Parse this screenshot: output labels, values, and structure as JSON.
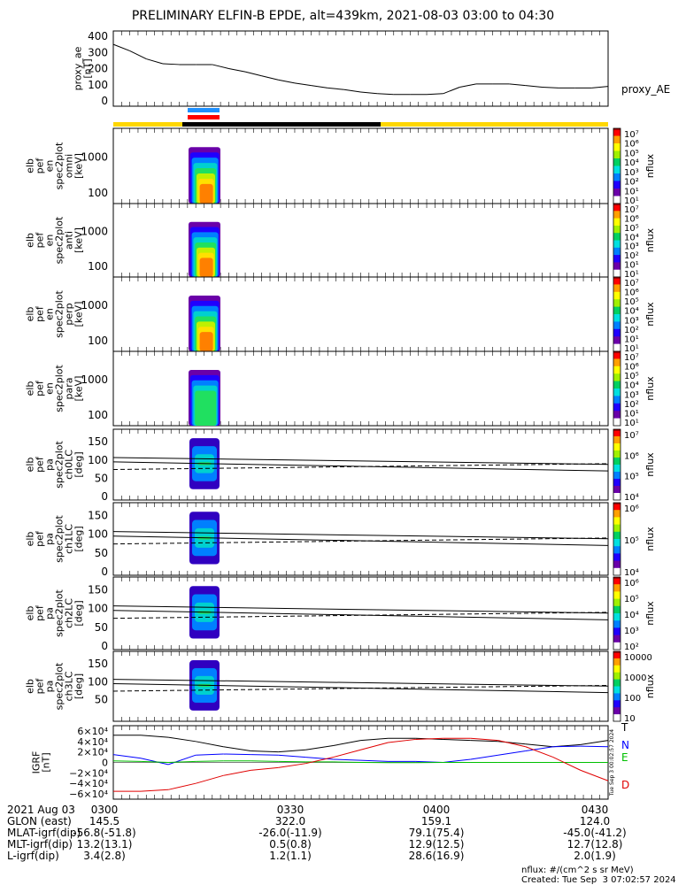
{
  "title": "PRELIMINARY ELFIN-B EPDE, alt=439km, 2021-08-03 03:00 to 04:30",
  "ae_panel": {
    "ylabel_lines": [
      "proxy_ae",
      "[nT]"
    ],
    "series_label": "proxy_AE",
    "ticks": [
      "400",
      "300",
      "200",
      "100",
      "0"
    ]
  },
  "spec_panels": [
    {
      "ylabel_lines": [
        "elb",
        "pef",
        "en",
        "spec2plot",
        "omni",
        "[keV]"
      ],
      "ticks": [
        "1000",
        "100"
      ],
      "cbar_label": "nflux",
      "cbar_ticks": [
        "10⁷",
        "10⁶",
        "10⁵",
        "10⁴",
        "10³",
        "10²",
        "10¹",
        "10¹"
      ]
    },
    {
      "ylabel_lines": [
        "elb",
        "pef",
        "en",
        "spec2plot",
        "anti",
        "[keV]"
      ],
      "ticks": [
        "1000",
        "100"
      ],
      "cbar_label": "nflux",
      "cbar_ticks": [
        "10⁷",
        "10⁶",
        "10⁵",
        "10⁴",
        "10³",
        "10²",
        "10¹",
        "10¹"
      ]
    },
    {
      "ylabel_lines": [
        "elb",
        "pef",
        "en",
        "spec2plot",
        "perp",
        "[keV]"
      ],
      "ticks": [
        "1000",
        "100"
      ],
      "cbar_label": "nflux",
      "cbar_ticks": [
        "10⁷",
        "10⁶",
        "10⁵",
        "10⁴",
        "10³",
        "10²",
        "10¹",
        "10¹"
      ]
    },
    {
      "ylabel_lines": [
        "elb",
        "pef",
        "en",
        "spec2plot",
        "para",
        "[keV]"
      ],
      "ticks": [
        "1000",
        "100"
      ],
      "cbar_label": "nflux",
      "cbar_ticks": [
        "10⁷",
        "10⁶",
        "10⁵",
        "10⁴",
        "10³",
        "10²",
        "10¹",
        "10¹"
      ]
    }
  ],
  "pa_panels": [
    {
      "ylabel_lines": [
        "elb",
        "pef",
        "pa",
        "spec2plot",
        "ch0LC",
        "[deg]"
      ],
      "ticks": [
        "150",
        "100",
        "50",
        "0"
      ],
      "cbar_label": "nflux",
      "cbar_ticks": [
        "10⁷",
        "10⁶",
        "10⁵",
        "10⁴"
      ]
    },
    {
      "ylabel_lines": [
        "elb",
        "pef",
        "pa",
        "spec2plot",
        "ch1LC",
        "[deg]"
      ],
      "ticks": [
        "150",
        "100",
        "50",
        "0"
      ],
      "cbar_label": "nflux",
      "cbar_ticks": [
        "10⁶",
        "10⁵",
        "10⁴"
      ]
    },
    {
      "ylabel_lines": [
        "elb",
        "pef",
        "pa",
        "spec2plot",
        "ch2LC",
        "[deg]"
      ],
      "ticks": [
        "150",
        "100",
        "50",
        "0"
      ],
      "cbar_label": "nflux",
      "cbar_ticks": [
        "10⁶",
        "10⁵",
        "10⁴",
        "10³",
        "10²"
      ]
    },
    {
      "ylabel_lines": [
        "elb",
        "pef",
        "pa",
        "spec2plot",
        "ch3LC",
        "[deg]"
      ],
      "ticks": [
        "150",
        "100",
        "50"
      ],
      "cbar_label": "nflux",
      "cbar_ticks": [
        "10000",
        "1000",
        "100",
        "10"
      ]
    }
  ],
  "igrf_panel": {
    "ylabel_lines": [
      "IGRF",
      "[nT]"
    ],
    "ticks": [
      "6×10⁴",
      "4×10⁴",
      "2×10⁴",
      "0",
      "−2×10⁴",
      "−4×10⁴",
      "−6×10⁴"
    ],
    "legend": [
      {
        "label": "T",
        "color": "#000000"
      },
      {
        "label": "N",
        "color": "#0000ff"
      },
      {
        "label": "E",
        "color": "#00c000"
      },
      {
        "label": "D",
        "color": "#e00000"
      }
    ],
    "side_text": "Tue Sep  3 00:02:57 2024"
  },
  "footer_rows": [
    [
      "2021 Aug 03",
      "0300",
      "0330",
      "0400",
      "0430"
    ],
    [
      "GLON (east)",
      "145.5",
      "322.0",
      "159.1",
      "124.0"
    ],
    [
      "MLAT-igrf(dip)",
      "-56.8(-51.8)",
      "-26.0(-11.9)",
      "79.1(75.4)",
      "-45.0(-41.2)"
    ],
    [
      "MLT-igrf(dip)",
      "13.2(13.1)",
      "0.5(0.8)",
      "12.9(12.5)",
      "12.7(12.8)"
    ],
    [
      "L-igrf(dip)",
      "3.4(2.8)",
      "1.2(1.1)",
      "28.6(16.9)",
      "2.0(1.9)"
    ]
  ],
  "footnote_lines": [
    "nflux: #/(cm^2 s sr MeV)",
    "Created: Tue Sep  3 07:02:57 2024"
  ],
  "chart_data": {
    "type": "line",
    "x_range": [
      "03:00",
      "04:30"
    ],
    "proxy_ae": {
      "name": "proxy_AE",
      "ylim": [
        0,
        400
      ],
      "x_min": [
        0,
        3,
        6,
        9,
        12,
        15,
        18,
        21,
        24,
        27,
        30,
        33,
        36,
        39,
        42,
        45,
        48,
        51,
        54,
        57,
        60,
        63,
        66,
        69,
        72,
        75,
        78,
        81,
        84,
        87,
        90
      ],
      "values": [
        350,
        310,
        260,
        230,
        225,
        225,
        225,
        200,
        180,
        155,
        130,
        110,
        95,
        80,
        70,
        55,
        45,
        40,
        40,
        40,
        45,
        85,
        105,
        105,
        105,
        95,
        85,
        80,
        80,
        80,
        90
      ]
    },
    "igrf": {
      "ylim": [
        -65000,
        65000
      ],
      "x_min": [
        0,
        5,
        10,
        15,
        20,
        25,
        30,
        35,
        40,
        45,
        50,
        55,
        60,
        65,
        70,
        75,
        80,
        85,
        90
      ],
      "T": [
        52000,
        52000,
        48000,
        40000,
        30000,
        22000,
        20000,
        24000,
        32000,
        42000,
        46000,
        46000,
        44000,
        42000,
        40000,
        35000,
        30000,
        34000,
        42000
      ],
      "N": [
        15000,
        8000,
        -4000,
        14000,
        16000,
        15000,
        14000,
        10000,
        6000,
        4000,
        2000,
        2000,
        0,
        6000,
        14000,
        22000,
        30000,
        31000,
        30000
      ],
      "E": [
        3000,
        2000,
        0,
        2000,
        3000,
        3000,
        2000,
        1000,
        1000,
        0,
        -500,
        -500,
        0,
        0,
        0,
        0,
        0,
        0,
        0
      ],
      "D": [
        -55000,
        -55000,
        -52000,
        -40000,
        -25000,
        -15000,
        -10000,
        -2000,
        10000,
        24000,
        38000,
        44000,
        46000,
        46000,
        42000,
        30000,
        10000,
        -15000,
        -35000
      ]
    }
  }
}
